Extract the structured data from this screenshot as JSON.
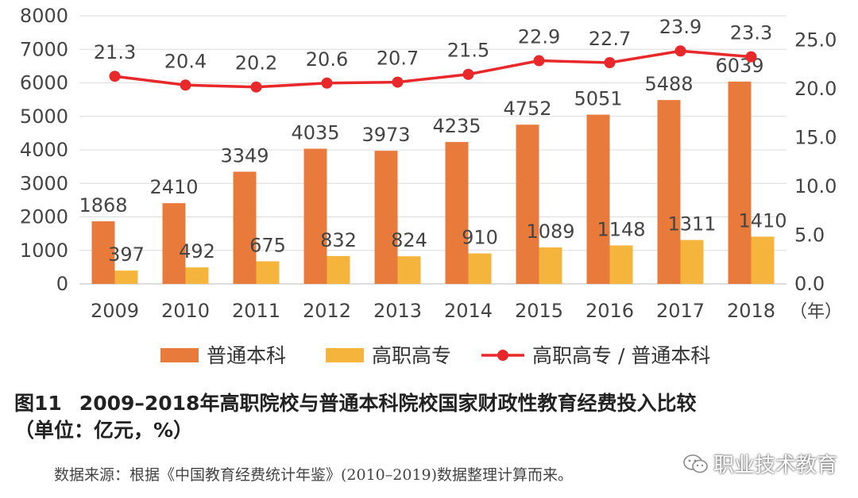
{
  "chart_data": {
    "type": "bar",
    "categories": [
      "2009",
      "2010",
      "2011",
      "2012",
      "2013",
      "2014",
      "2015",
      "2016",
      "2017",
      "2018"
    ],
    "x_unit": "（年）",
    "series": [
      {
        "name": "普通本科",
        "type": "bar",
        "axis": "left",
        "color": "#e87b3b",
        "values": [
          1868,
          2410,
          3349,
          4035,
          3973,
          4235,
          4752,
          5051,
          5488,
          6039
        ]
      },
      {
        "name": "高职高专",
        "type": "bar",
        "axis": "left",
        "color": "#f5b43c",
        "values": [
          397,
          492,
          675,
          832,
          824,
          910,
          1089,
          1148,
          1311,
          1410
        ]
      },
      {
        "name": "高职高专 / 普通本科",
        "type": "line",
        "axis": "right",
        "color": "#e8282a",
        "values": [
          21.3,
          20.4,
          20.2,
          20.6,
          20.7,
          21.5,
          22.9,
          22.7,
          23.9,
          23.3
        ]
      }
    ],
    "left_axis": {
      "min": 0,
      "max": 8000,
      "ticks": [
        "0",
        "1000",
        "2000",
        "3000",
        "4000",
        "5000",
        "6000",
        "7000",
        "8000"
      ]
    },
    "right_axis": {
      "min": 0,
      "max": 27.5,
      "ticks": [
        "0.0",
        "5.0",
        "10.0",
        "15.0",
        "20.0",
        "25.0"
      ]
    },
    "grid": true,
    "legend_position": "bottom"
  },
  "caption": {
    "figure_no": "图11",
    "title": "2009–2018年高职院校与普通本科院校国家财政性教育经费投入比较",
    "unit": "（单位：亿元，%）"
  },
  "source": "数据来源：根据《中国教育经费统计年鉴》(2010–2019)数据整理计算而来。",
  "watermark": {
    "text": "职业技术教育",
    "icon": "wechat-icon"
  }
}
